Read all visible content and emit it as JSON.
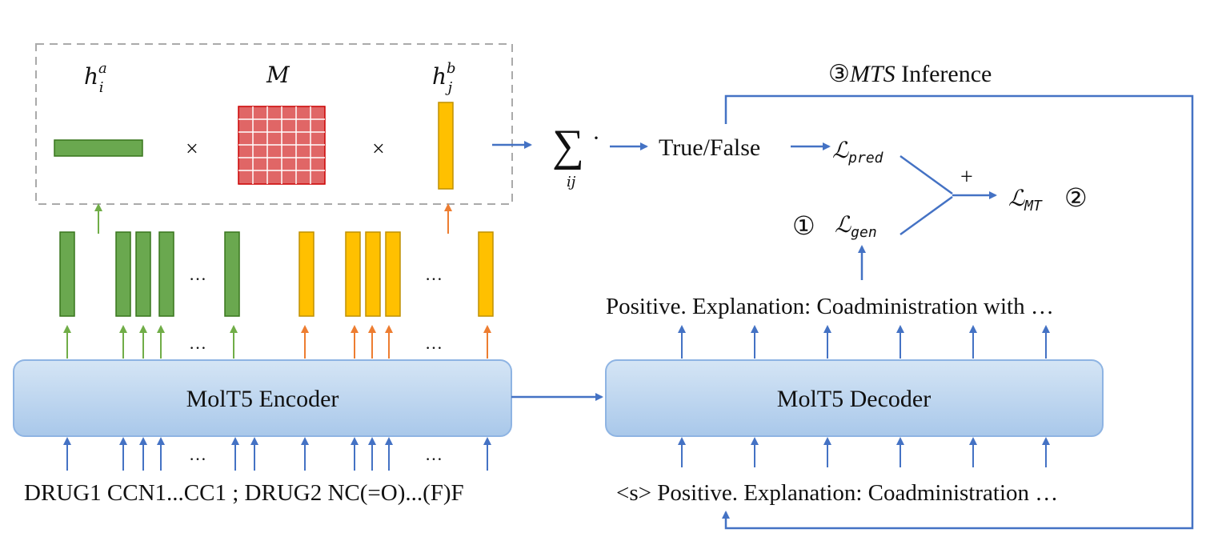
{
  "attention_box": {
    "label_a": "h",
    "label_a_sub": "i",
    "label_a_sup": "a",
    "label_m": "M",
    "label_b": "h",
    "label_b_sub": "j",
    "label_b_sup": "b",
    "times": "×"
  },
  "sum": {
    "symbol": "∑",
    "sub": "ij",
    "dot": "·"
  },
  "prediction": "True/False",
  "loss_pred": {
    "symbol": "ℒ",
    "sub": "pred"
  },
  "loss_gen": {
    "marker": "①",
    "symbol": "ℒ",
    "sub": "gen"
  },
  "loss_mt": {
    "symbol": "ℒ",
    "sub": "MT",
    "marker": "②"
  },
  "plus": "+",
  "inference": {
    "marker": "③",
    "name": "MTS",
    "rest": " Inference"
  },
  "encoder": {
    "label": "MolT5 Encoder"
  },
  "decoder": {
    "label": "MolT5 Decoder"
  },
  "ellipsis": "…",
  "encoder_input": "DRUG1 CCN1...CC1 ; DRUG2 NC(=O)...(F)F",
  "decoder_output": "Positive. Explanation: Coadministration with …",
  "decoder_input": "<s> Positive. Explanation: Coadministration …",
  "colors": {
    "green": "#6aa84f",
    "orange": "#ffc000",
    "matrix_red": "#e06666",
    "blue_arrow": "#4472c4",
    "box_fill": "#bdd7ee"
  }
}
